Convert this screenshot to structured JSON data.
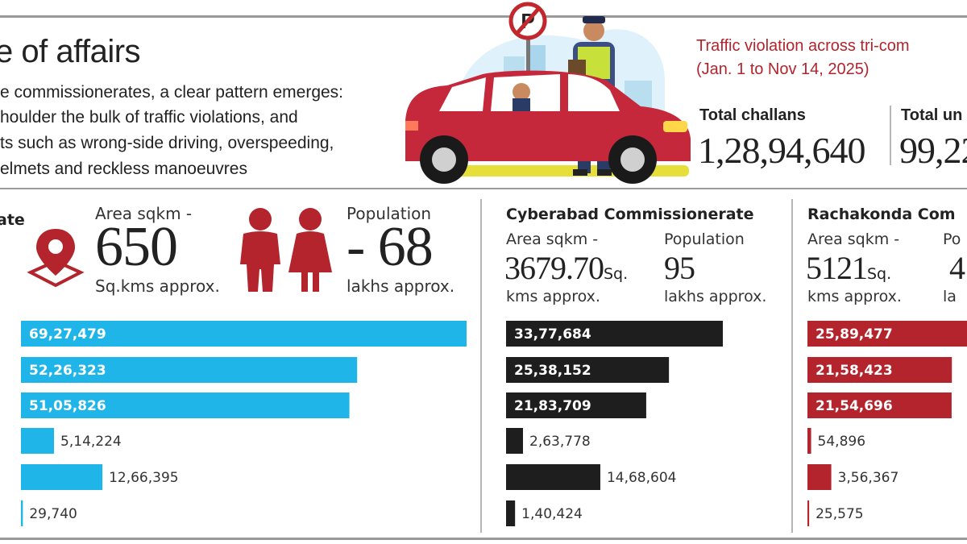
{
  "header": {
    "title": "e of affairs",
    "intro_lines": [
      "e commissionerates, a clear pattern emerges:",
      "houlder the bulk of traffic violations, and",
      "ts such as wrong-side driving, overspeeding,",
      "elmets and reckless manoeuvres"
    ],
    "side_title_line1": "Traffic violation across tri-com",
    "side_title_line2": "(Jan. 1 to Nov 14,  2025)"
  },
  "totals": {
    "challans_label": "Total challans",
    "challans_value": "1,28,94,640",
    "second_label": "Total un",
    "second_value": "99,22"
  },
  "sections": {
    "hyderabad": {
      "title_fragment": "ate",
      "area_label": "Area sqkm -",
      "area_value": "650",
      "area_unit": "Sq.kms approx.",
      "pop_label": "Population",
      "pop_value": "- 68",
      "pop_unit": "lakhs approx."
    },
    "cyberabad": {
      "title": "Cyberabad Commissionerate",
      "area_label": "Area sqkm -",
      "area_value": "3679.70",
      "area_unit_inline": "Sq.",
      "area_unit_line2": "kms approx.",
      "pop_label": "Population",
      "pop_value": "95",
      "pop_unit": "lakhs approx."
    },
    "rachakonda": {
      "title": "Rachakonda Com",
      "area_label": "Area sqkm -",
      "area_value": "5121",
      "area_unit_inline": "Sq.",
      "area_unit_line2": "kms approx.",
      "pop_label": "Po",
      "pop_value": "4",
      "pop_unit": "la"
    }
  },
  "icons": [
    "no-parking-sign-icon",
    "location-pin-icon",
    "people-icon",
    "car-illustration-icon",
    "traffic-police-icon"
  ],
  "colors": {
    "hyderabad_bar": "#1fb5e8",
    "cyberabad_bar": "#1e1e1e",
    "rachakonda_bar": "#b3242c",
    "accent_red": "#b3242c"
  },
  "chart_data": [
    {
      "type": "bar",
      "orientation": "horizontal",
      "series": [
        {
          "values": [
            6927479,
            5226323,
            5105826,
            514224,
            1266395,
            29740
          ]
        }
      ],
      "value_labels": [
        "69,27,479",
        "52,26,323",
        "51,05,826",
        "5,14,224",
        "12,66,395",
        "29,740"
      ],
      "color": "#1fb5e8"
    },
    {
      "type": "bar",
      "orientation": "horizontal",
      "title": "Cyberabad Commissionerate",
      "series": [
        {
          "values": [
            3377684,
            2538152,
            2183709,
            263778,
            1468604,
            140424
          ]
        }
      ],
      "value_labels": [
        "33,77,684",
        "25,38,152",
        "21,83,709",
        "2,63,778",
        "14,68,604",
        "1,40,424"
      ],
      "color": "#1e1e1e"
    },
    {
      "type": "bar",
      "orientation": "horizontal",
      "title": "Rachakonda Com",
      "series": [
        {
          "values": [
            2589477,
            2158423,
            2154696,
            54896,
            356367,
            25575
          ]
        }
      ],
      "value_labels": [
        "25,89,477",
        "21,58,423",
        "21,54,696",
        "54,896",
        "3,56,367",
        "25,575"
      ],
      "color": "#b3242c"
    }
  ]
}
